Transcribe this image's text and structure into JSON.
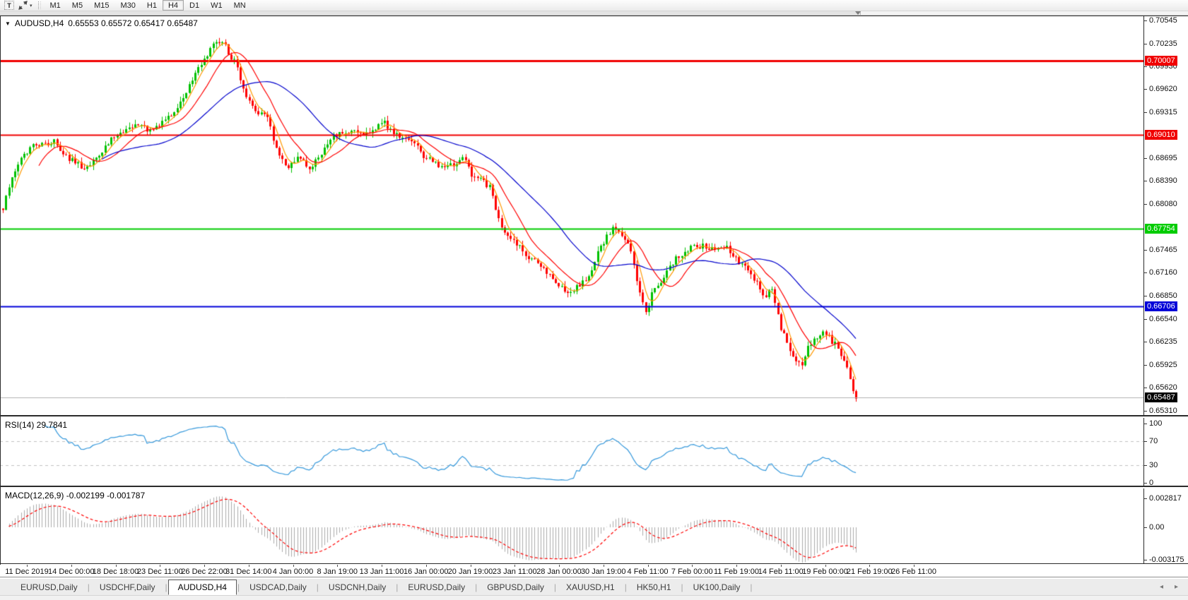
{
  "toolbar": {
    "text_tool": "T",
    "cursor_dropdown": "▾",
    "timeframes": [
      "M1",
      "M5",
      "M15",
      "M30",
      "H1",
      "H4",
      "D1",
      "W1",
      "MN"
    ],
    "active_timeframe": "H4"
  },
  "title_bar": {
    "caret": "▼",
    "text": "AUDUSD,H4",
    "ohlc": "0.65553 0.65572 0.65417 0.65487"
  },
  "chart_data": {
    "type": "candlestick",
    "symbol": "AUDUSD",
    "timeframe": "H4",
    "quote": {
      "open": 0.65553,
      "high": 0.65572,
      "low": 0.65417,
      "close": 0.65487
    },
    "y_range": {
      "min": 0.6525,
      "max": 0.706
    },
    "y_ticks": [
      "0.70545",
      "0.70235",
      "0.69930",
      "0.69620",
      "0.69315",
      "0.68695",
      "0.68390",
      "0.68080",
      "0.67465",
      "0.67160",
      "0.66850",
      "0.66540",
      "0.66235",
      "0.65925",
      "0.65620",
      "0.65310"
    ],
    "levels": [
      {
        "price": 0.70007,
        "label": "0.70007",
        "color": "#f00000",
        "width": 3
      },
      {
        "price": 0.6901,
        "label": "0.69010",
        "color": "#f00000",
        "width": 2
      },
      {
        "price": 0.67754,
        "label": "0.67754",
        "color": "#00cc00",
        "width": 2
      },
      {
        "price": 0.66706,
        "label": "0.66706",
        "color": "#0000d8",
        "width": 2
      }
    ],
    "current_price": {
      "value": 0.65487,
      "label": "0.65487",
      "line_color": "#b0b0b0",
      "label_bg": "#000000"
    },
    "candles": {
      "count": 285,
      "x_start": 4,
      "x_end": 1211,
      "body_width": 3,
      "up_color": "#00c000",
      "down_color": "#ff0000"
    },
    "moving_averages": [
      {
        "name": "fast",
        "window": 5,
        "color": "#ff9900"
      },
      {
        "name": "mid",
        "window": 13,
        "color": "#ff0000"
      },
      {
        "name": "slow",
        "window": 34,
        "color": "#0000cc"
      }
    ],
    "price_path": [
      [
        4,
        0.6802
      ],
      [
        20,
        0.6852
      ],
      [
        38,
        0.6878
      ],
      [
        45,
        0.6895
      ],
      [
        48,
        0.6885
      ],
      [
        60,
        0.6888
      ],
      [
        75,
        0.6893
      ],
      [
        90,
        0.6878
      ],
      [
        105,
        0.6862
      ],
      [
        120,
        0.6857
      ],
      [
        135,
        0.6865
      ],
      [
        150,
        0.6888
      ],
      [
        165,
        0.6902
      ],
      [
        180,
        0.691
      ],
      [
        195,
        0.6917
      ],
      [
        210,
        0.6908
      ],
      [
        225,
        0.6916
      ],
      [
        240,
        0.6924
      ],
      [
        255,
        0.6944
      ],
      [
        270,
        0.6972
      ],
      [
        285,
        0.6996
      ],
      [
        300,
        0.7018
      ],
      [
        312,
        0.703
      ],
      [
        322,
        0.7012
      ],
      [
        335,
        0.6995
      ],
      [
        348,
        0.695
      ],
      [
        362,
        0.6932
      ],
      [
        378,
        0.6922
      ],
      [
        392,
        0.6875
      ],
      [
        408,
        0.686
      ],
      [
        422,
        0.687
      ],
      [
        438,
        0.6856
      ],
      [
        452,
        0.6874
      ],
      [
        468,
        0.6896
      ],
      [
        484,
        0.6902
      ],
      [
        500,
        0.6906
      ],
      [
        515,
        0.6901
      ],
      [
        530,
        0.691
      ],
      [
        543,
        0.6921
      ],
      [
        555,
        0.6902
      ],
      [
        570,
        0.6901
      ],
      [
        585,
        0.6891
      ],
      [
        600,
        0.6873
      ],
      [
        615,
        0.6861
      ],
      [
        630,
        0.6856
      ],
      [
        643,
        0.6861
      ],
      [
        655,
        0.6872
      ],
      [
        668,
        0.6847
      ],
      [
        682,
        0.684
      ],
      [
        694,
        0.683
      ],
      [
        704,
        0.6792
      ],
      [
        715,
        0.6766
      ],
      [
        726,
        0.6756
      ],
      [
        740,
        0.6746
      ],
      [
        755,
        0.6731
      ],
      [
        770,
        0.6721
      ],
      [
        785,
        0.6706
      ],
      [
        800,
        0.6691
      ],
      [
        815,
        0.6696
      ],
      [
        830,
        0.6706
      ],
      [
        845,
        0.6741
      ],
      [
        858,
        0.6764
      ],
      [
        868,
        0.6776
      ],
      [
        880,
        0.6761
      ],
      [
        893,
        0.6746
      ],
      [
        904,
        0.6692
      ],
      [
        913,
        0.6662
      ],
      [
        924,
        0.6691
      ],
      [
        938,
        0.6711
      ],
      [
        952,
        0.6731
      ],
      [
        966,
        0.6741
      ],
      [
        980,
        0.6751
      ],
      [
        995,
        0.6752
      ],
      [
        1010,
        0.6746
      ],
      [
        1025,
        0.6751
      ],
      [
        1040,
        0.6736
      ],
      [
        1055,
        0.6721
      ],
      [
        1070,
        0.6701
      ],
      [
        1082,
        0.6686
      ],
      [
        1092,
        0.6691
      ],
      [
        1103,
        0.6646
      ],
      [
        1113,
        0.6621
      ],
      [
        1124,
        0.6601
      ],
      [
        1134,
        0.6591
      ],
      [
        1144,
        0.6616
      ],
      [
        1155,
        0.6631
      ],
      [
        1165,
        0.6636
      ],
      [
        1175,
        0.6626
      ],
      [
        1185,
        0.6616
      ],
      [
        1195,
        0.6596
      ],
      [
        1204,
        0.6566
      ],
      [
        1211,
        0.6549
      ]
    ],
    "rsi": {
      "label": "RSI(14) 29.7841",
      "period": 14,
      "current": 29.7841,
      "color": "#3598db",
      "dashed_levels": [
        70,
        30
      ],
      "ticks": [
        {
          "v": 100,
          "label": "100"
        },
        {
          "v": 70,
          "label": "70"
        },
        {
          "v": 30,
          "label": "30"
        },
        {
          "v": 0,
          "label": "0"
        }
      ]
    },
    "macd": {
      "label": "MACD(12,26,9) -0.002199 -0.001787",
      "fast": 12,
      "slow": 26,
      "signal": 9,
      "macd_value": -0.002199,
      "signal_value": -0.001787,
      "histogram_color": "#ababab",
      "signal_color": "#ff0000",
      "ticks": [
        {
          "v": 0.002817,
          "label": "0.002817"
        },
        {
          "v": 0,
          "label": "0.00"
        },
        {
          "v": -0.003175,
          "label": "-0.003175"
        }
      ]
    },
    "x_labels": [
      "11 Dec 2019",
      "14 Dec 00:00",
      "18 Dec 18:00",
      "23 Dec 11:00",
      "26 Dec 22:00",
      "31 Dec 14:00",
      "4 Jan 00:00",
      "8 Jan 19:00",
      "13 Jan 11:00",
      "16 Jan 00:00",
      "20 Jan 19:00",
      "23 Jan 11:00",
      "28 Jan 00:00",
      "30 Jan 19:00",
      "4 Feb 11:00",
      "7 Feb 00:00",
      "11 Feb 19:00",
      "14 Feb 11:00",
      "19 Feb 00:00",
      "21 Feb 19:00",
      "26 Feb 11:00"
    ]
  },
  "tabs": {
    "scroll_left": "◂",
    "scroll_right": "▸",
    "items": [
      {
        "label": "EURUSD,Daily",
        "active": false
      },
      {
        "label": "USDCHF,Daily",
        "active": false
      },
      {
        "label": "AUDUSD,H4",
        "active": true
      },
      {
        "label": "USDCAD,Daily",
        "active": false
      },
      {
        "label": "USDCNH,Daily",
        "active": false
      },
      {
        "label": "EURUSD,Daily",
        "active": false
      },
      {
        "label": "GBPUSD,Daily",
        "active": false
      },
      {
        "label": "XAUUSD,H1",
        "active": false
      },
      {
        "label": "HK50,H1",
        "active": false
      },
      {
        "label": "UK100,Daily",
        "active": false
      }
    ]
  }
}
